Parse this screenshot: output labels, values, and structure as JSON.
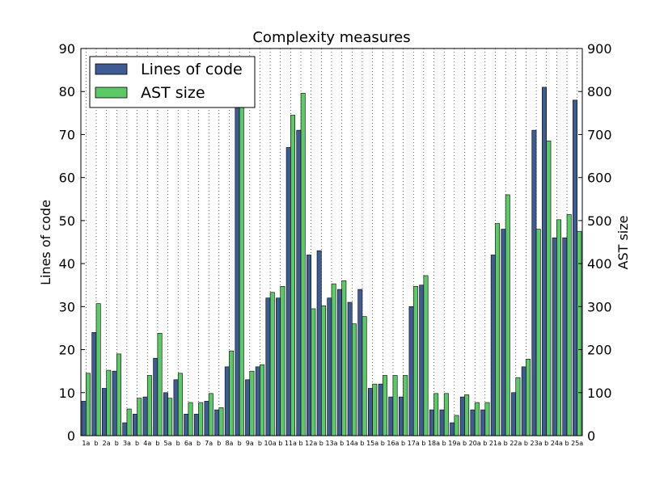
{
  "chart_data": {
    "type": "bar",
    "title": "Complexity measures",
    "ylabel": "Lines of code",
    "ylabel_right": "AST size",
    "ylim": [
      0,
      90
    ],
    "ylim_right": [
      0,
      900
    ],
    "yticks": [
      "0",
      "10",
      "20",
      "30",
      "40",
      "50",
      "60",
      "70",
      "80",
      "90"
    ],
    "yticks_right": [
      "0",
      "100",
      "200",
      "300",
      "400",
      "500",
      "600",
      "700",
      "800",
      "900"
    ],
    "grid": "vertical dotted",
    "legend_position": "top-left",
    "categories": [
      "1a",
      "b",
      "2a",
      "b",
      "3a",
      "b",
      "4a",
      "b",
      "5a",
      "b",
      "6a",
      "b",
      "7a",
      "b",
      "8a",
      "b",
      "9a",
      "b",
      "10a",
      "b",
      "11a",
      "b",
      "12a",
      "b",
      "13a",
      "b",
      "14a",
      "b",
      "15a",
      "b",
      "16a",
      "b",
      "17a",
      "b",
      "18a",
      "b",
      "19a",
      "b",
      "20a",
      "b",
      "21a",
      "b",
      "22a",
      "b",
      "23a",
      "b",
      "24a",
      "b",
      "25a"
    ],
    "series": [
      {
        "name": "Lines of code",
        "color": "#3f5b93",
        "axis": "left",
        "values": [
          8,
          24,
          11,
          15,
          3,
          5,
          9,
          18,
          10,
          13,
          5,
          5,
          8,
          6,
          16,
          80,
          13,
          16,
          32,
          32,
          67,
          71,
          42,
          43,
          32,
          34,
          31,
          34,
          11,
          12,
          9,
          9,
          30,
          35,
          6,
          6,
          3,
          9,
          6,
          6,
          42,
          48,
          10,
          16,
          71,
          81,
          46,
          46,
          78
        ]
      },
      {
        "name": "AST size",
        "color": "#5bc965",
        "axis": "right",
        "values": [
          145,
          307,
          152,
          190,
          62,
          87,
          140,
          238,
          87,
          145,
          77,
          77,
          98,
          65,
          197,
          800,
          150,
          165,
          333,
          347,
          745,
          796,
          295,
          302,
          353,
          360,
          260,
          277,
          120,
          140,
          140,
          140,
          347,
          372,
          98,
          98,
          47,
          95,
          77,
          77,
          493,
          560,
          135,
          178,
          480,
          685,
          502,
          514,
          475
        ]
      }
    ]
  }
}
